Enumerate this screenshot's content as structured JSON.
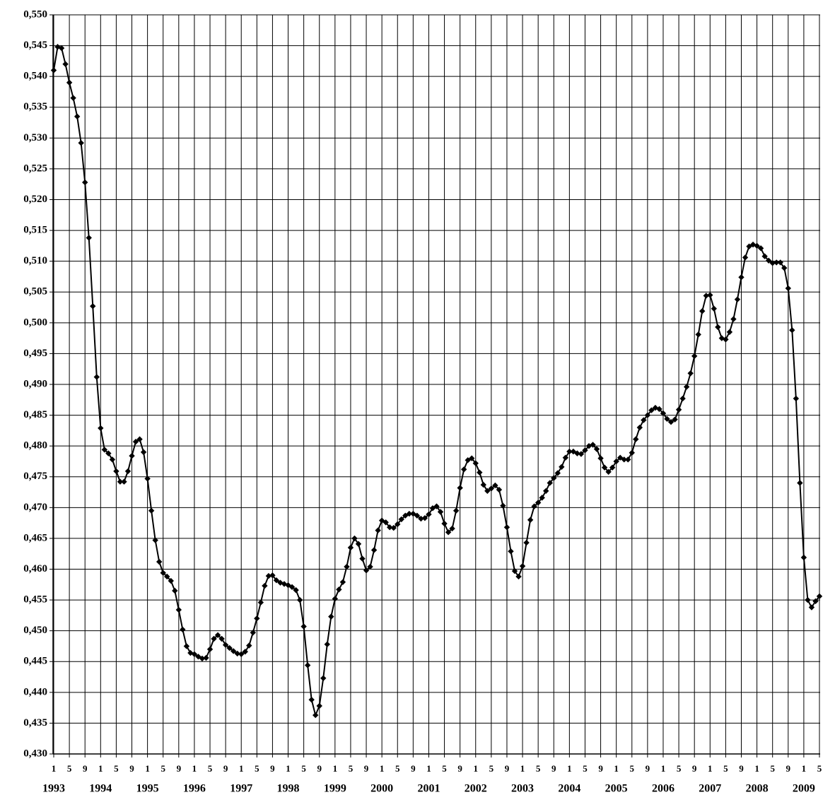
{
  "chart_data": {
    "type": "line",
    "color": "#000000",
    "grid": true,
    "x": [
      "1993-01",
      "1993-02",
      "1993-03",
      "1993-04",
      "1993-05",
      "1993-06",
      "1993-07",
      "1993-08",
      "1993-09",
      "1993-10",
      "1993-11",
      "1993-12",
      "1994-01",
      "1994-02",
      "1994-03",
      "1994-04",
      "1994-05",
      "1994-06",
      "1994-07",
      "1994-08",
      "1994-09",
      "1994-10",
      "1994-11",
      "1994-12",
      "1995-01",
      "1995-02",
      "1995-03",
      "1995-04",
      "1995-05",
      "1995-06",
      "1995-07",
      "1995-08",
      "1995-09",
      "1995-10",
      "1995-11",
      "1995-12",
      "1996-01",
      "1996-02",
      "1996-03",
      "1996-04",
      "1996-05",
      "1996-06",
      "1996-07",
      "1996-08",
      "1996-09",
      "1996-10",
      "1996-11",
      "1996-12",
      "1997-01",
      "1997-02",
      "1997-03",
      "1997-04",
      "1997-05",
      "1997-06",
      "1997-07",
      "1997-08",
      "1997-09",
      "1997-10",
      "1997-11",
      "1997-12",
      "1998-01",
      "1998-02",
      "1998-03",
      "1998-04",
      "1998-05",
      "1998-06",
      "1998-07",
      "1998-08",
      "1998-09",
      "1998-10",
      "1998-11",
      "1998-12",
      "1999-01",
      "1999-02",
      "1999-03",
      "1999-04",
      "1999-05",
      "1999-06",
      "1999-07",
      "1999-08",
      "1999-09",
      "1999-10",
      "1999-11",
      "1999-12",
      "2000-01",
      "2000-02",
      "2000-03",
      "2000-04",
      "2000-05",
      "2000-06",
      "2000-07",
      "2000-08",
      "2000-09",
      "2000-10",
      "2000-11",
      "2000-12",
      "2001-01",
      "2001-02",
      "2001-03",
      "2001-04",
      "2001-05",
      "2001-06",
      "2001-07",
      "2001-08",
      "2001-09",
      "2001-10",
      "2001-11",
      "2001-12",
      "2002-01",
      "2002-02",
      "2002-03",
      "2002-04",
      "2002-05",
      "2002-06",
      "2002-07",
      "2002-08",
      "2002-09",
      "2002-10",
      "2002-11",
      "2002-12",
      "2003-01",
      "2003-02",
      "2003-03",
      "2003-04",
      "2003-05",
      "2003-06",
      "2003-07",
      "2003-08",
      "2003-09",
      "2003-10",
      "2003-11",
      "2003-12",
      "2004-01",
      "2004-02",
      "2004-03",
      "2004-04",
      "2004-05",
      "2004-06",
      "2004-07",
      "2004-08",
      "2004-09",
      "2004-10",
      "2004-11",
      "2004-12",
      "2005-01",
      "2005-02",
      "2005-03",
      "2005-04",
      "2005-05",
      "2005-06",
      "2005-07",
      "2005-08",
      "2005-09",
      "2005-10",
      "2005-11",
      "2005-12",
      "2006-01",
      "2006-02",
      "2006-03",
      "2006-04",
      "2006-05",
      "2006-06",
      "2006-07",
      "2006-08",
      "2006-09",
      "2006-10",
      "2006-11",
      "2006-12",
      "2007-01",
      "2007-02",
      "2007-03",
      "2007-04",
      "2007-05",
      "2007-06",
      "2007-07",
      "2007-08",
      "2007-09",
      "2007-10",
      "2007-11",
      "2007-12",
      "2008-01",
      "2008-02",
      "2008-03",
      "2008-04",
      "2008-05",
      "2008-06",
      "2008-07",
      "2008-08",
      "2008-09",
      "2008-10",
      "2008-11",
      "2008-12",
      "2009-01",
      "2009-02",
      "2009-03",
      "2009-04",
      "2009-05"
    ],
    "values": [
      0.541,
      0.5448,
      0.5446,
      0.542,
      0.539,
      0.5365,
      0.5335,
      0.5292,
      0.5228,
      0.5138,
      0.5027,
      0.4912,
      0.4829,
      0.4794,
      0.4788,
      0.4778,
      0.4759,
      0.4742,
      0.4742,
      0.4759,
      0.4784,
      0.4807,
      0.4811,
      0.479,
      0.4747,
      0.4695,
      0.4647,
      0.4612,
      0.4594,
      0.4588,
      0.4581,
      0.4565,
      0.4534,
      0.4502,
      0.4475,
      0.4464,
      0.4462,
      0.4458,
      0.4455,
      0.4456,
      0.447,
      0.4487,
      0.4493,
      0.4487,
      0.4477,
      0.4472,
      0.4467,
      0.4463,
      0.4462,
      0.4466,
      0.4476,
      0.4497,
      0.452,
      0.4546,
      0.4573,
      0.4589,
      0.459,
      0.4582,
      0.4578,
      0.4576,
      0.4574,
      0.4571,
      0.4566,
      0.455,
      0.4507,
      0.4444,
      0.4388,
      0.4363,
      0.4378,
      0.4423,
      0.4478,
      0.4523,
      0.4552,
      0.4567,
      0.4579,
      0.4604,
      0.4635,
      0.465,
      0.4641,
      0.4617,
      0.4598,
      0.4604,
      0.4631,
      0.4663,
      0.4679,
      0.4676,
      0.4668,
      0.4667,
      0.4673,
      0.4681,
      0.4687,
      0.469,
      0.469,
      0.4687,
      0.4682,
      0.4683,
      0.4689,
      0.4699,
      0.4702,
      0.4693,
      0.4674,
      0.466,
      0.4666,
      0.4695,
      0.4732,
      0.4762,
      0.4777,
      0.478,
      0.4772,
      0.4757,
      0.4737,
      0.4727,
      0.4731,
      0.4736,
      0.4729,
      0.4703,
      0.4668,
      0.4629,
      0.4597,
      0.4588,
      0.4605,
      0.4643,
      0.468,
      0.4702,
      0.4708,
      0.4716,
      0.4727,
      0.474,
      0.4748,
      0.4756,
      0.4766,
      0.4781,
      0.4791,
      0.4791,
      0.4788,
      0.4787,
      0.4793,
      0.48,
      0.4802,
      0.4795,
      0.478,
      0.4765,
      0.4758,
      0.4765,
      0.4775,
      0.4781,
      0.4778,
      0.4778,
      0.4789,
      0.4811,
      0.483,
      0.4842,
      0.485,
      0.4858,
      0.4862,
      0.486,
      0.4853,
      0.4844,
      0.4839,
      0.4843,
      0.4859,
      0.4877,
      0.4896,
      0.4918,
      0.4946,
      0.4981,
      0.5019,
      0.5044,
      0.5045,
      0.5023,
      0.4993,
      0.4975,
      0.4973,
      0.4985,
      0.5006,
      0.5038,
      0.5074,
      0.5106,
      0.5124,
      0.5127,
      0.5125,
      0.5121,
      0.5108,
      0.5101,
      0.5097,
      0.5098,
      0.5098,
      0.5089,
      0.5056,
      0.4988,
      0.4877,
      0.474,
      0.4619,
      0.455,
      0.4538,
      0.4548,
      0.4556
    ],
    "ylim": [
      0.43,
      0.55
    ],
    "yticks": [
      {
        "value": 0.43,
        "label": "0,430"
      },
      {
        "value": 0.435,
        "label": "0,435"
      },
      {
        "value": 0.44,
        "label": "0,440"
      },
      {
        "value": 0.445,
        "label": "0,445"
      },
      {
        "value": 0.45,
        "label": "0,450"
      },
      {
        "value": 0.455,
        "label": "0,455"
      },
      {
        "value": 0.46,
        "label": "0,460"
      },
      {
        "value": 0.465,
        "label": "0,465"
      },
      {
        "value": 0.47,
        "label": "0,470"
      },
      {
        "value": 0.475,
        "label": "0,475"
      },
      {
        "value": 0.48,
        "label": "0,480"
      },
      {
        "value": 0.485,
        "label": "0,485"
      },
      {
        "value": 0.49,
        "label": "0,490"
      },
      {
        "value": 0.495,
        "label": "0,495"
      },
      {
        "value": 0.5,
        "label": "0,500"
      },
      {
        "value": 0.505,
        "label": "0,505"
      },
      {
        "value": 0.51,
        "label": "0,510"
      },
      {
        "value": 0.515,
        "label": "0,515"
      },
      {
        "value": 0.52,
        "label": "0,520"
      },
      {
        "value": 0.525,
        "label": "0,525"
      },
      {
        "value": 0.53,
        "label": "0,530"
      },
      {
        "value": 0.535,
        "label": "0,535"
      },
      {
        "value": 0.54,
        "label": "0,540"
      },
      {
        "value": 0.545,
        "label": "0,545"
      },
      {
        "value": 0.55,
        "label": "0,550"
      }
    ],
    "xticks": [
      {
        "value": "1993-01",
        "label": "1"
      },
      {
        "value": "1993-05",
        "label": "5"
      },
      {
        "value": "1993-09",
        "label": "9"
      },
      {
        "value": "1994-01",
        "label": "1"
      },
      {
        "value": "1994-05",
        "label": "5"
      },
      {
        "value": "1994-09",
        "label": "9"
      },
      {
        "value": "1995-01",
        "label": "1"
      },
      {
        "value": "1995-05",
        "label": "5"
      },
      {
        "value": "1995-09",
        "label": "9"
      },
      {
        "value": "1996-01",
        "label": "1"
      },
      {
        "value": "1996-05",
        "label": "5"
      },
      {
        "value": "1996-09",
        "label": "9"
      },
      {
        "value": "1997-01",
        "label": "1"
      },
      {
        "value": "1997-05",
        "label": "5"
      },
      {
        "value": "1997-09",
        "label": "9"
      },
      {
        "value": "1998-01",
        "label": "1"
      },
      {
        "value": "1998-05",
        "label": "5"
      },
      {
        "value": "1998-09",
        "label": "9"
      },
      {
        "value": "1999-01",
        "label": "1"
      },
      {
        "value": "1999-05",
        "label": "5"
      },
      {
        "value": "1999-09",
        "label": "9"
      },
      {
        "value": "2000-01",
        "label": "1"
      },
      {
        "value": "2000-05",
        "label": "5"
      },
      {
        "value": "2000-09",
        "label": "9"
      },
      {
        "value": "2001-01",
        "label": "1"
      },
      {
        "value": "2001-05",
        "label": "5"
      },
      {
        "value": "2001-09",
        "label": "9"
      },
      {
        "value": "2002-01",
        "label": "1"
      },
      {
        "value": "2002-05",
        "label": "5"
      },
      {
        "value": "2002-09",
        "label": "9"
      },
      {
        "value": "2003-01",
        "label": "1"
      },
      {
        "value": "2003-05",
        "label": "5"
      },
      {
        "value": "2003-09",
        "label": "9"
      },
      {
        "value": "2004-01",
        "label": "1"
      },
      {
        "value": "2004-05",
        "label": "5"
      },
      {
        "value": "2004-09",
        "label": "9"
      },
      {
        "value": "2005-01",
        "label": "1"
      },
      {
        "value": "2005-05",
        "label": "5"
      },
      {
        "value": "2005-09",
        "label": "9"
      },
      {
        "value": "2006-01",
        "label": "1"
      },
      {
        "value": "2006-05",
        "label": "5"
      },
      {
        "value": "2006-09",
        "label": "9"
      },
      {
        "value": "2007-01",
        "label": "1"
      },
      {
        "value": "2007-05",
        "label": "5"
      },
      {
        "value": "2007-09",
        "label": "9"
      },
      {
        "value": "2008-01",
        "label": "1"
      },
      {
        "value": "2008-05",
        "label": "5"
      },
      {
        "value": "2008-09",
        "label": "9"
      },
      {
        "value": "2009-01",
        "label": "1"
      },
      {
        "value": "2009-05",
        "label": "5"
      }
    ],
    "year_labels": [
      {
        "value": "1993-01",
        "label": "1993"
      },
      {
        "value": "1994-01",
        "label": "1994"
      },
      {
        "value": "1995-01",
        "label": "1995"
      },
      {
        "value": "1996-01",
        "label": "1996"
      },
      {
        "value": "1997-01",
        "label": "1997"
      },
      {
        "value": "1998-01",
        "label": "1998"
      },
      {
        "value": "1999-01",
        "label": "1999"
      },
      {
        "value": "2000-01",
        "label": "2000"
      },
      {
        "value": "2001-01",
        "label": "2001"
      },
      {
        "value": "2002-01",
        "label": "2002"
      },
      {
        "value": "2003-01",
        "label": "2003"
      },
      {
        "value": "2004-01",
        "label": "2004"
      },
      {
        "value": "2005-01",
        "label": "2005"
      },
      {
        "value": "2006-01",
        "label": "2006"
      },
      {
        "value": "2007-01",
        "label": "2007"
      },
      {
        "value": "2008-01",
        "label": "2008"
      },
      {
        "value": "2009-01",
        "label": "2009"
      }
    ]
  }
}
